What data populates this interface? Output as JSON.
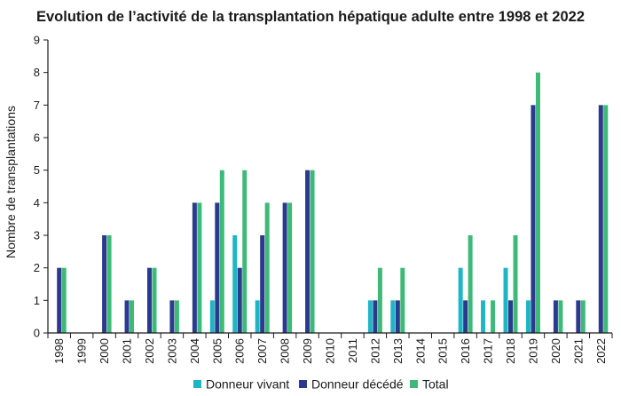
{
  "chart_data": {
    "type": "bar",
    "title": "Evolution de l’activité de la transplantation hépatique adulte entre 1998 et 2022",
    "xlabel": "",
    "ylabel": "Nombre de transplantations",
    "ylim": [
      0,
      9
    ],
    "yticks": [
      0,
      1,
      2,
      3,
      4,
      5,
      6,
      7,
      8,
      9
    ],
    "grid": false,
    "legend_position": "bottom",
    "categories": [
      "1998",
      "1999",
      "2000",
      "2001",
      "2002",
      "2003",
      "2004",
      "2005",
      "2006",
      "2007",
      "2008",
      "2009",
      "2010",
      "2011",
      "2012",
      "2013",
      "2014",
      "2015",
      "2016",
      "2017",
      "2018",
      "2019",
      "2020",
      "2021",
      "2022"
    ],
    "series": [
      {
        "name": "Donneur vivant",
        "color": "#1fb5c4",
        "values": [
          0,
          0,
          0,
          0,
          0,
          0,
          0,
          1,
          3,
          1,
          0,
          0,
          0,
          0,
          1,
          1,
          0,
          0,
          2,
          1,
          2,
          1,
          0,
          0,
          0
        ]
      },
      {
        "name": "Donneur décédé",
        "color": "#2b3a8c",
        "values": [
          2,
          0,
          3,
          1,
          2,
          1,
          4,
          4,
          2,
          3,
          4,
          5,
          0,
          0,
          1,
          1,
          0,
          0,
          1,
          0,
          1,
          7,
          1,
          1,
          7
        ]
      },
      {
        "name": "Total",
        "color": "#3dba78",
        "values": [
          2,
          0,
          3,
          1,
          2,
          1,
          4,
          5,
          5,
          4,
          4,
          5,
          0,
          0,
          2,
          2,
          0,
          0,
          3,
          1,
          3,
          8,
          1,
          1,
          7
        ]
      }
    ]
  }
}
